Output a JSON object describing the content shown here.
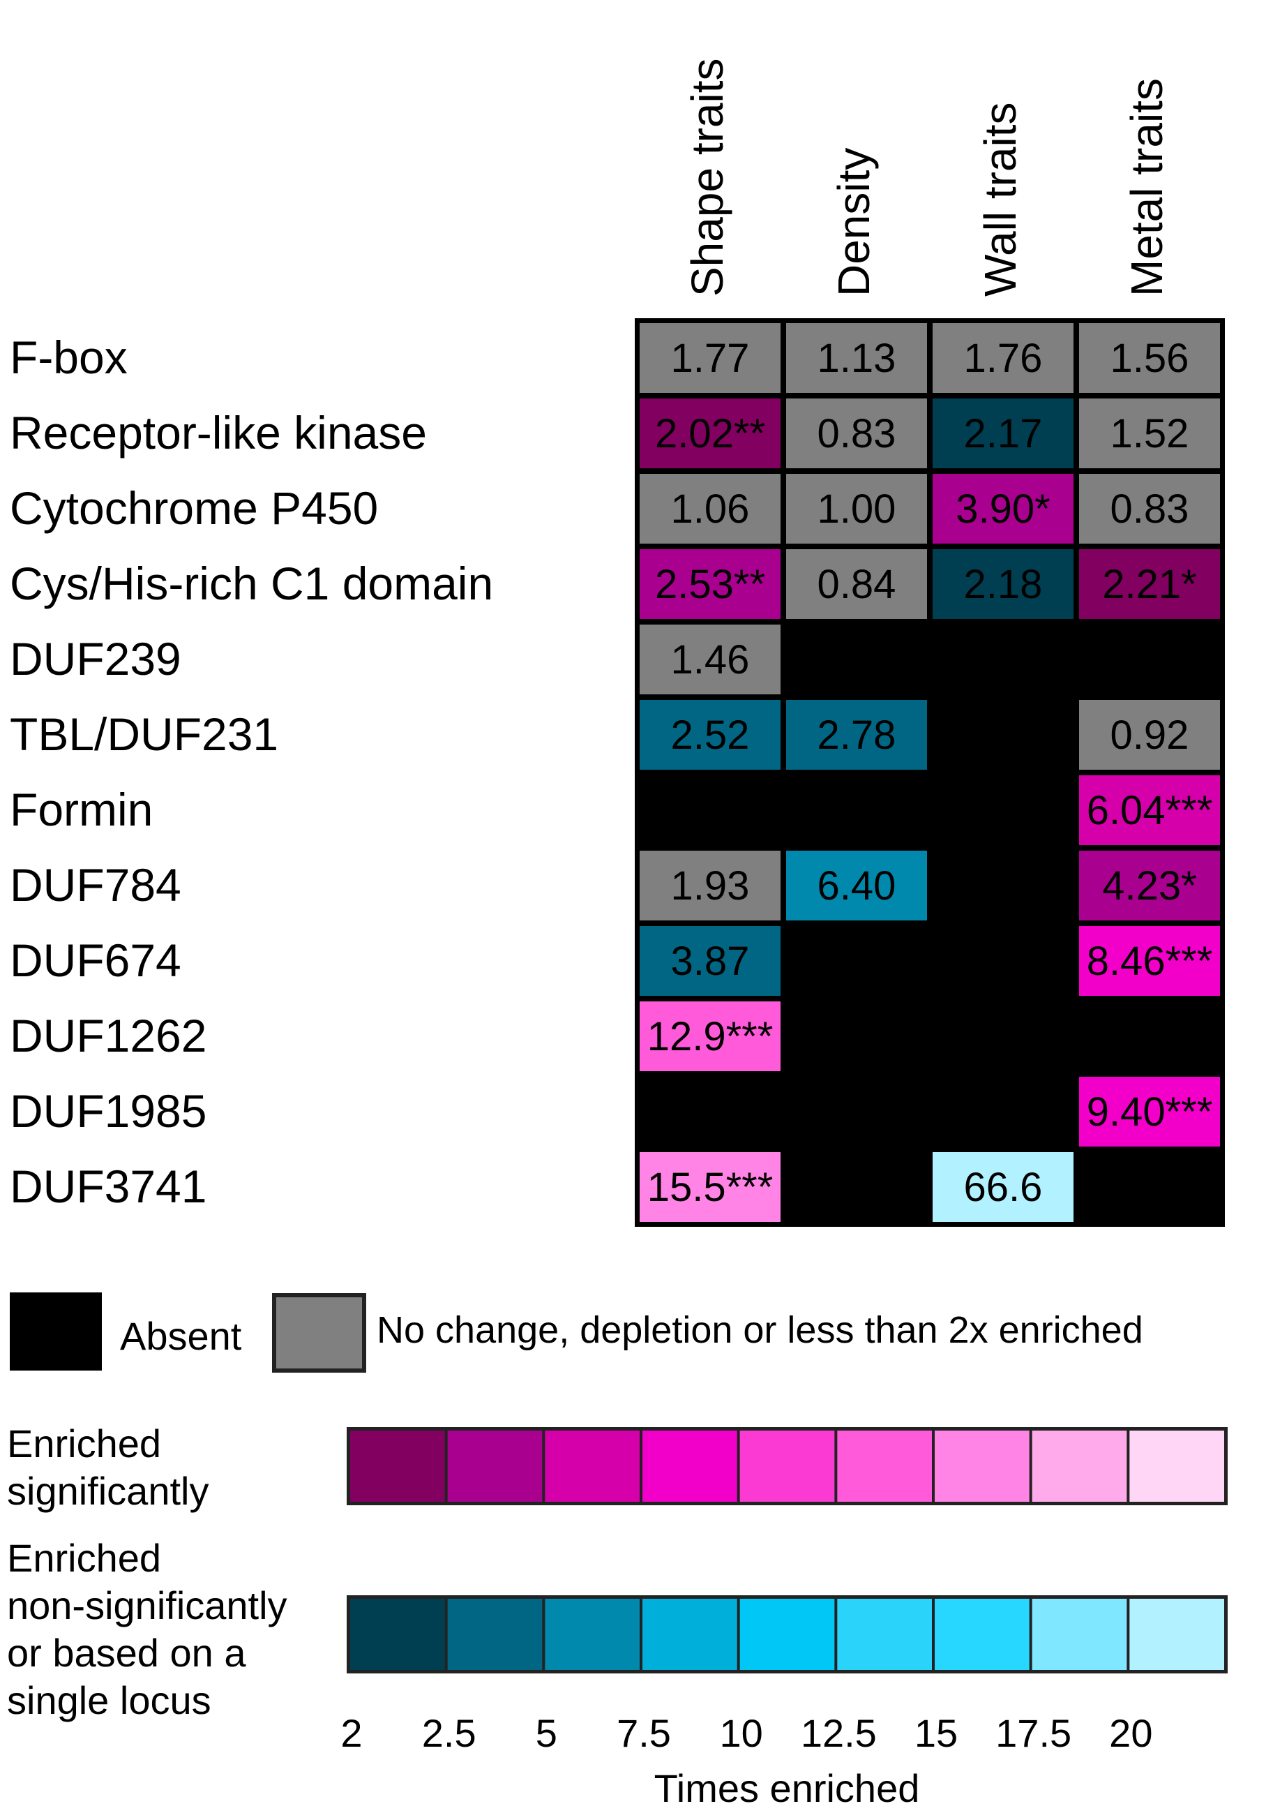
{
  "chart_data": {
    "type": "heatmap",
    "columns": [
      "Shape traits",
      "Density",
      "Wall traits",
      "Metal traits"
    ],
    "rows": [
      "F-box",
      "Receptor-like kinase",
      "Cytochrome P450",
      "Cys/His-rich C1 domain",
      "DUF239",
      "TBL/DUF231",
      "Formin",
      "DUF784",
      "DUF674",
      "DUF1262",
      "DUF1985",
      "DUF3741"
    ],
    "cells": [
      [
        {
          "text": "1.77",
          "value": 1.77,
          "status": "no-change"
        },
        {
          "text": "1.13",
          "value": 1.13,
          "status": "no-change"
        },
        {
          "text": "1.76",
          "value": 1.76,
          "status": "no-change"
        },
        {
          "text": "1.56",
          "value": 1.56,
          "status": "no-change"
        }
      ],
      [
        {
          "text": "2.02**",
          "value": 2.02,
          "status": "significant"
        },
        {
          "text": "0.83",
          "value": 0.83,
          "status": "no-change"
        },
        {
          "text": "2.17",
          "value": 2.17,
          "status": "non-significant"
        },
        {
          "text": "1.52",
          "value": 1.52,
          "status": "no-change"
        }
      ],
      [
        {
          "text": "1.06",
          "value": 1.06,
          "status": "no-change"
        },
        {
          "text": "1.00",
          "value": 1.0,
          "status": "no-change"
        },
        {
          "text": "3.90*",
          "value": 3.9,
          "status": "significant"
        },
        {
          "text": "0.83",
          "value": 0.83,
          "status": "no-change"
        }
      ],
      [
        {
          "text": "2.53**",
          "value": 2.53,
          "status": "significant"
        },
        {
          "text": "0.84",
          "value": 0.84,
          "status": "no-change"
        },
        {
          "text": "2.18",
          "value": 2.18,
          "status": "non-significant"
        },
        {
          "text": "2.21*",
          "value": 2.21,
          "status": "significant"
        }
      ],
      [
        {
          "text": "1.46",
          "value": 1.46,
          "status": "no-change"
        },
        {
          "text": "",
          "value": null,
          "status": "absent"
        },
        {
          "text": "",
          "value": null,
          "status": "absent"
        },
        {
          "text": "",
          "value": null,
          "status": "absent"
        }
      ],
      [
        {
          "text": "2.52",
          "value": 2.52,
          "status": "non-significant"
        },
        {
          "text": "2.78",
          "value": 2.78,
          "status": "non-significant"
        },
        {
          "text": "",
          "value": null,
          "status": "absent"
        },
        {
          "text": "0.92",
          "value": 0.92,
          "status": "no-change"
        }
      ],
      [
        {
          "text": "",
          "value": null,
          "status": "absent"
        },
        {
          "text": "",
          "value": null,
          "status": "absent"
        },
        {
          "text": "",
          "value": null,
          "status": "absent"
        },
        {
          "text": "6.04***",
          "value": 6.04,
          "status": "significant"
        }
      ],
      [
        {
          "text": "1.93",
          "value": 1.93,
          "status": "no-change"
        },
        {
          "text": "6.40",
          "value": 6.4,
          "status": "non-significant"
        },
        {
          "text": "",
          "value": null,
          "status": "absent"
        },
        {
          "text": "4.23*",
          "value": 4.23,
          "status": "significant"
        }
      ],
      [
        {
          "text": "3.87",
          "value": 3.87,
          "status": "non-significant"
        },
        {
          "text": "",
          "value": null,
          "status": "absent"
        },
        {
          "text": "",
          "value": null,
          "status": "absent"
        },
        {
          "text": "8.46***",
          "value": 8.46,
          "status": "significant"
        }
      ],
      [
        {
          "text": "12.9***",
          "value": 12.9,
          "status": "significant"
        },
        {
          "text": "",
          "value": null,
          "status": "absent"
        },
        {
          "text": "",
          "value": null,
          "status": "absent"
        },
        {
          "text": "",
          "value": null,
          "status": "absent"
        }
      ],
      [
        {
          "text": "",
          "value": null,
          "status": "absent"
        },
        {
          "text": "",
          "value": null,
          "status": "absent"
        },
        {
          "text": "",
          "value": null,
          "status": "absent"
        },
        {
          "text": "9.40***",
          "value": 9.4,
          "status": "significant"
        }
      ],
      [
        {
          "text": "15.5***",
          "value": 15.5,
          "status": "significant"
        },
        {
          "text": "",
          "value": null,
          "status": "absent"
        },
        {
          "text": "66.6",
          "value": 66.6,
          "status": "non-significant"
        },
        {
          "text": "",
          "value": null,
          "status": "absent"
        }
      ]
    ],
    "legend": {
      "absent_label": "Absent",
      "nochange_label": "No change, depletion or less than 2x enriched",
      "significant_label": [
        "Enriched",
        "significantly"
      ],
      "nonsignificant_label": [
        "Enriched",
        "non-significantly",
        "or based on a",
        "single locus"
      ],
      "scale_ticks": [
        "2",
        "2.5",
        "5",
        "7.5",
        "10",
        "12.5",
        "15",
        "17.5",
        "20"
      ],
      "scale_xlabel": "Times enriched"
    },
    "colors": {
      "absent": "#000000",
      "no_change": "#808080",
      "significant": [
        "#820060",
        "#aa0090",
        "#d500a9",
        "#f200c9",
        "#fa3ad2",
        "#ff5ad9",
        "#ff84e5",
        "#ffaaeb",
        "#ffd6f5"
      ],
      "non_significant": [
        "#003f52",
        "#006683",
        "#0088ad",
        "#00b0da",
        "#00c7f5",
        "#2ad3f9",
        "#28d7ff",
        "#7fe7ff",
        "#b2f1ff"
      ]
    }
  }
}
